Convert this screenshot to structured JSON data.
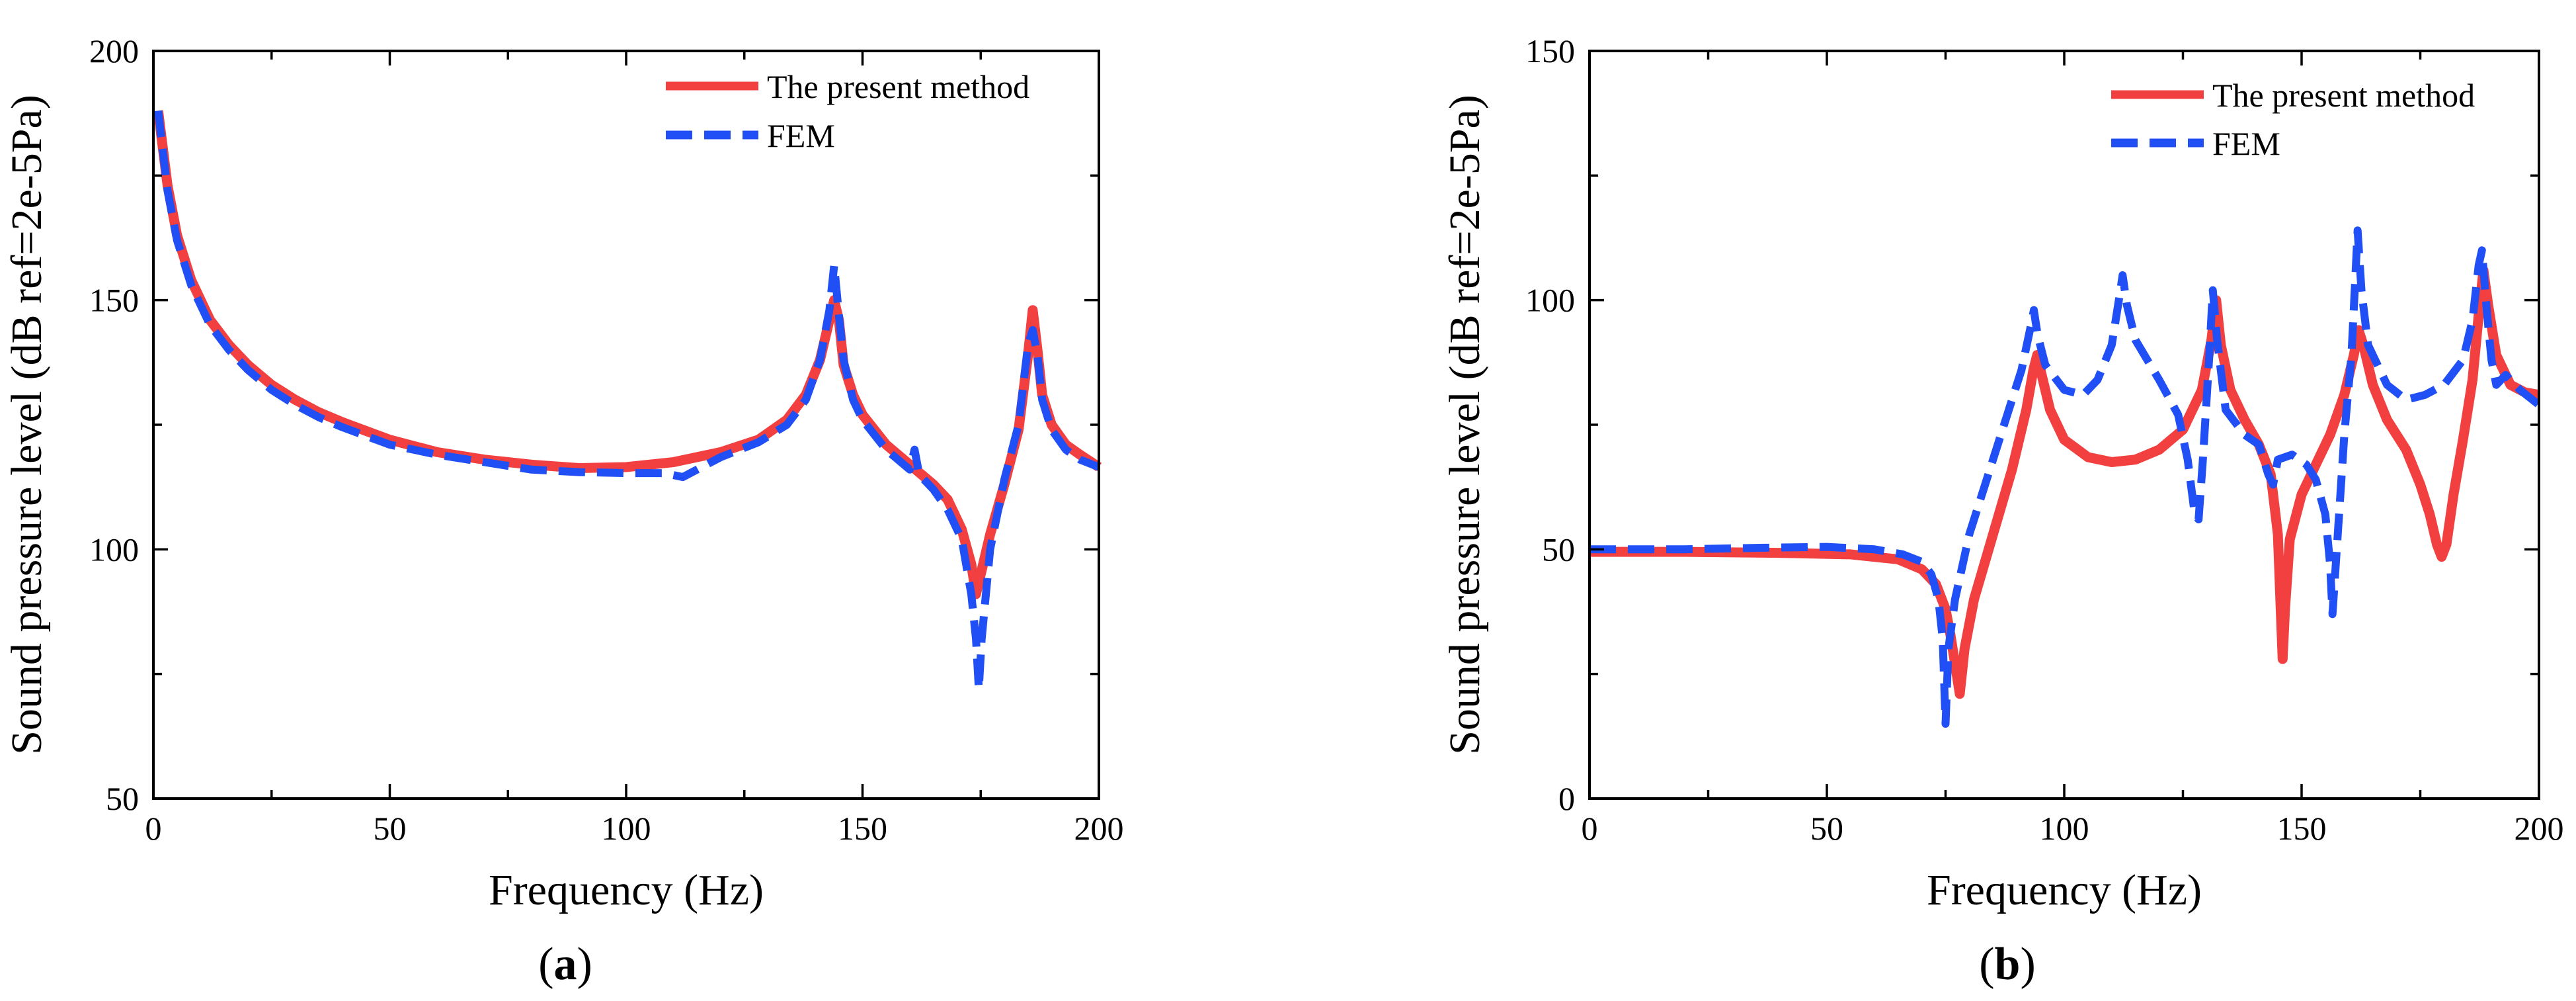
{
  "chart_data": [
    {
      "type": "line",
      "panel_label": "a",
      "xlabel": "Frequency (Hz)",
      "ylabel": "Sound pressure level (dB ref=2e-5Pa)",
      "xlim": [
        0,
        200
      ],
      "ylim": [
        50,
        200
      ],
      "xticks": [
        0,
        50,
        100,
        150,
        200
      ],
      "yticks": [
        50,
        100,
        150,
        200
      ],
      "legend_position": "top-right",
      "series": [
        {
          "name": "The present method",
          "color": "#f24040",
          "style": "solid",
          "points": [
            [
              1,
              188
            ],
            [
              3,
              173
            ],
            [
              5,
              163
            ],
            [
              8,
              154
            ],
            [
              12,
              146
            ],
            [
              16,
              141
            ],
            [
              20,
              137
            ],
            [
              25,
              133
            ],
            [
              30,
              130
            ],
            [
              35,
              127.5
            ],
            [
              40,
              125.5
            ],
            [
              50,
              122
            ],
            [
              60,
              119.5
            ],
            [
              70,
              118
            ],
            [
              80,
              117
            ],
            [
              90,
              116.3
            ],
            [
              100,
              116.5
            ],
            [
              110,
              117.5
            ],
            [
              120,
              119.5
            ],
            [
              128,
              122
            ],
            [
              134,
              126
            ],
            [
              138,
              131
            ],
            [
              141,
              138
            ],
            [
              143,
              146
            ],
            [
              144,
              150
            ],
            [
              145,
              146
            ],
            [
              146,
              137
            ],
            [
              148,
              131
            ],
            [
              150,
              127
            ],
            [
              155,
              121
            ],
            [
              160,
              117
            ],
            [
              165,
              113
            ],
            [
              168,
              110
            ],
            [
              171,
              104
            ],
            [
              173,
              97
            ],
            [
              174,
              91
            ],
            [
              175,
              95
            ],
            [
              177,
              103
            ],
            [
              180,
              113
            ],
            [
              183,
              124
            ],
            [
              185,
              139
            ],
            [
              186,
              148
            ],
            [
              187,
              140
            ],
            [
              188,
              131
            ],
            [
              190,
              125
            ],
            [
              193,
              121
            ],
            [
              196,
              119
            ],
            [
              200,
              116.5
            ]
          ]
        },
        {
          "name": "FEM",
          "color": "#1f4ff5",
          "style": "dashed",
          "points": [
            [
              1,
              188
            ],
            [
              3,
              172
            ],
            [
              5,
              162
            ],
            [
              8,
              153
            ],
            [
              12,
              145
            ],
            [
              16,
              140
            ],
            [
              20,
              136
            ],
            [
              25,
              132
            ],
            [
              30,
              129
            ],
            [
              35,
              126.5
            ],
            [
              40,
              124.5
            ],
            [
              50,
              121
            ],
            [
              60,
              119
            ],
            [
              70,
              117.5
            ],
            [
              80,
              116
            ],
            [
              90,
              115.5
            ],
            [
              100,
              115.3
            ],
            [
              108,
              115.3
            ],
            [
              112,
              114.5
            ],
            [
              116,
              116.5
            ],
            [
              120,
              118.5
            ],
            [
              128,
              121.5
            ],
            [
              134,
              125
            ],
            [
              138,
              130
            ],
            [
              141,
              138
            ],
            [
              143,
              148
            ],
            [
              144,
              157
            ],
            [
              145,
              147
            ],
            [
              146,
              138
            ],
            [
              148,
              130
            ],
            [
              150,
              126
            ],
            [
              155,
              120
            ],
            [
              160,
              116
            ],
            [
              161,
              120
            ],
            [
              162,
              115
            ],
            [
              165,
              112
            ],
            [
              168,
              108
            ],
            [
              171,
              102
            ],
            [
              173,
              91
            ],
            [
              174,
              82
            ],
            [
              174.6,
              72
            ],
            [
              175.2,
              82
            ],
            [
              177,
              100
            ],
            [
              180,
              114
            ],
            [
              183,
              125
            ],
            [
              185,
              141
            ],
            [
              186,
              144
            ],
            [
              187,
              139
            ],
            [
              188,
              130
            ],
            [
              190,
              124
            ],
            [
              193,
              120
            ],
            [
              196,
              118
            ],
            [
              200,
              116.5
            ]
          ]
        }
      ]
    },
    {
      "type": "line",
      "panel_label": "b",
      "xlabel": "Frequency (Hz)",
      "ylabel": "Sound pressure level (dB ref=2e-5Pa)",
      "xlim": [
        0,
        200
      ],
      "ylim": [
        0,
        150
      ],
      "xticks": [
        0,
        50,
        100,
        150,
        200
      ],
      "yticks": [
        0,
        50,
        100,
        150
      ],
      "legend_position": "top-right",
      "series": [
        {
          "name": "The present method",
          "color": "#f24040",
          "style": "solid",
          "points": [
            [
              0,
              49.5
            ],
            [
              20,
              49.5
            ],
            [
              40,
              49.3
            ],
            [
              55,
              49
            ],
            [
              65,
              48
            ],
            [
              70,
              46
            ],
            [
              73,
              43
            ],
            [
              75,
              38
            ],
            [
              76,
              33
            ],
            [
              77,
              27
            ],
            [
              78,
              21
            ],
            [
              79,
              30
            ],
            [
              81,
              40
            ],
            [
              85,
              53
            ],
            [
              89,
              66
            ],
            [
              92,
              78
            ],
            [
              93.5,
              86
            ],
            [
              94.3,
              89
            ],
            [
              95,
              86
            ],
            [
              97,
              78
            ],
            [
              100,
              72
            ],
            [
              105,
              68.5
            ],
            [
              110,
              67.5
            ],
            [
              115,
              68
            ],
            [
              120,
              70
            ],
            [
              125,
              74
            ],
            [
              129,
              82
            ],
            [
              131,
              92
            ],
            [
              132,
              100
            ],
            [
              133,
              91
            ],
            [
              135,
              82
            ],
            [
              138,
              76
            ],
            [
              141,
              71
            ],
            [
              143.5,
              65
            ],
            [
              145,
              53
            ],
            [
              145.6,
              38
            ],
            [
              146,
              28
            ],
            [
              146.5,
              38
            ],
            [
              147.5,
              52
            ],
            [
              150,
              61
            ],
            [
              153,
              67
            ],
            [
              156,
              73
            ],
            [
              159,
              81
            ],
            [
              161,
              89
            ],
            [
              162,
              94
            ],
            [
              163,
              91
            ],
            [
              165,
              83
            ],
            [
              168,
              76
            ],
            [
              172,
              70
            ],
            [
              175,
              63
            ],
            [
              177,
              57
            ],
            [
              178.5,
              51
            ],
            [
              179.5,
              48.5
            ],
            [
              180.5,
              51
            ],
            [
              182,
              61
            ],
            [
              184,
              72
            ],
            [
              186,
              84
            ],
            [
              187.3,
              97
            ],
            [
              188.3,
              106
            ],
            [
              189.3,
              99
            ],
            [
              191,
              89
            ],
            [
              194,
              83
            ],
            [
              197,
              81.5
            ],
            [
              200,
              81
            ]
          ]
        },
        {
          "name": "FEM",
          "color": "#1f4ff5",
          "style": "dashed",
          "points": [
            [
              0,
              50
            ],
            [
              20,
              50
            ],
            [
              35,
              50.3
            ],
            [
              50,
              50.5
            ],
            [
              60,
              50
            ],
            [
              66,
              49
            ],
            [
              70,
              47.5
            ],
            [
              72,
              45
            ],
            [
              73.5,
              40
            ],
            [
              74.4,
              32
            ],
            [
              75,
              15
            ],
            [
              75.6,
              30
            ],
            [
              77,
              40
            ],
            [
              80,
              53
            ],
            [
              84,
              65
            ],
            [
              88,
              77
            ],
            [
              91,
              86
            ],
            [
              93,
              95
            ],
            [
              93.6,
              98
            ],
            [
              94.4,
              93
            ],
            [
              96,
              87
            ],
            [
              100,
              82
            ],
            [
              104,
              81
            ],
            [
              107,
              84
            ],
            [
              110,
              91
            ],
            [
              111.5,
              100
            ],
            [
              112.3,
              105
            ],
            [
              113.2,
              99
            ],
            [
              115,
              92
            ],
            [
              120,
              84
            ],
            [
              124,
              77
            ],
            [
              126,
              68
            ],
            [
              127.5,
              57
            ],
            [
              128.3,
              56
            ],
            [
              129.2,
              68
            ],
            [
              130.5,
              88
            ],
            [
              131.3,
              102
            ],
            [
              132.2,
              92
            ],
            [
              134,
              78
            ],
            [
              138,
              73
            ],
            [
              141,
              71
            ],
            [
              143,
              65
            ],
            [
              144,
              63
            ],
            [
              145,
              68
            ],
            [
              148,
              69
            ],
            [
              151,
              67
            ],
            [
              153,
              64
            ],
            [
              155,
              57
            ],
            [
              156,
              47
            ],
            [
              156.5,
              37
            ],
            [
              157.2,
              47
            ],
            [
              159,
              73
            ],
            [
              160.5,
              89
            ],
            [
              161.3,
              104
            ],
            [
              161.8,
              114
            ],
            [
              162.6,
              102
            ],
            [
              164,
              91
            ],
            [
              168,
              83
            ],
            [
              172,
              80
            ],
            [
              176,
              81
            ],
            [
              180,
              83
            ],
            [
              184,
              88
            ],
            [
              186,
              96
            ],
            [
              187.3,
              107
            ],
            [
              188,
              110
            ],
            [
              189,
              98
            ],
            [
              190,
              88
            ],
            [
              191,
              83
            ],
            [
              193,
              85
            ],
            [
              196,
              82
            ],
            [
              200,
              79
            ]
          ]
        }
      ]
    }
  ]
}
